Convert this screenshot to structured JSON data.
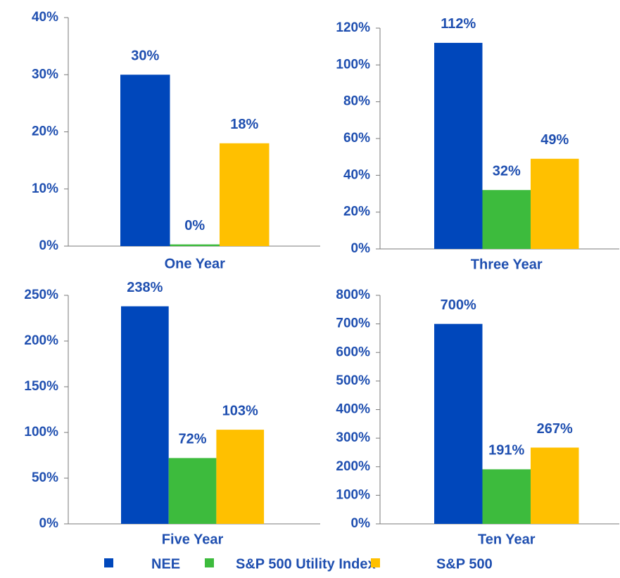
{
  "chart_data": [
    {
      "type": "bar",
      "categories": [
        "One Year"
      ],
      "series": [
        {
          "name": "NEE",
          "color": "#0047bb",
          "values": [
            30
          ],
          "value_labels": [
            "30%"
          ]
        },
        {
          "name": "S&P 500 Utility Index",
          "color": "#3dbb3d",
          "values": [
            0.3
          ],
          "value_labels": [
            "0%"
          ]
        },
        {
          "name": "S&P 500",
          "color": "#ffc000",
          "values": [
            18
          ],
          "value_labels": [
            "18%"
          ]
        }
      ],
      "ylim": [
        0,
        40
      ],
      "yticks": [
        {
          "value": 0,
          "label": "0%"
        },
        {
          "value": 10,
          "label": "10%"
        },
        {
          "value": 20,
          "label": "20%"
        },
        {
          "value": 30,
          "label": "30%"
        },
        {
          "value": 40,
          "label": "40%"
        }
      ]
    },
    {
      "type": "bar",
      "categories": [
        "Three Year"
      ],
      "series": [
        {
          "name": "NEE",
          "color": "#0047bb",
          "values": [
            112
          ],
          "value_labels": [
            "112%"
          ]
        },
        {
          "name": "S&P 500 Utility Index",
          "color": "#3dbb3d",
          "values": [
            32
          ],
          "value_labels": [
            "32%"
          ]
        },
        {
          "name": "S&P 500",
          "color": "#ffc000",
          "values": [
            49
          ],
          "value_labels": [
            "49%"
          ]
        }
      ],
      "ylim": [
        0,
        120
      ],
      "yticks": [
        {
          "value": 0,
          "label": "0%"
        },
        {
          "value": 20,
          "label": "20%"
        },
        {
          "value": 40,
          "label": "40%"
        },
        {
          "value": 60,
          "label": "60%"
        },
        {
          "value": 80,
          "label": "80%"
        },
        {
          "value": 100,
          "label": "100%"
        },
        {
          "value": 120,
          "label": "120%"
        }
      ]
    },
    {
      "type": "bar",
      "categories": [
        "Five Year"
      ],
      "series": [
        {
          "name": "NEE",
          "color": "#0047bb",
          "values": [
            238
          ],
          "value_labels": [
            "238%"
          ]
        },
        {
          "name": "S&P 500 Utility Index",
          "color": "#3dbb3d",
          "values": [
            72
          ],
          "value_labels": [
            "72%"
          ]
        },
        {
          "name": "S&P 500",
          "color": "#ffc000",
          "values": [
            103
          ],
          "value_labels": [
            "103%"
          ]
        }
      ],
      "ylim": [
        0,
        250
      ],
      "yticks": [
        {
          "value": 0,
          "label": "0%"
        },
        {
          "value": 50,
          "label": "50%"
        },
        {
          "value": 100,
          "label": "100%"
        },
        {
          "value": 150,
          "label": "150%"
        },
        {
          "value": 200,
          "label": "200%"
        },
        {
          "value": 250,
          "label": "250%"
        }
      ]
    },
    {
      "type": "bar",
      "categories": [
        "Ten Year"
      ],
      "series": [
        {
          "name": "NEE",
          "color": "#0047bb",
          "values": [
            700
          ],
          "value_labels": [
            "700%"
          ]
        },
        {
          "name": "S&P 500 Utility Index",
          "color": "#3dbb3d",
          "values": [
            191
          ],
          "value_labels": [
            "191%"
          ]
        },
        {
          "name": "S&P 500",
          "color": "#ffc000",
          "values": [
            267
          ],
          "value_labels": [
            "267%"
          ]
        }
      ],
      "ylim": [
        0,
        800
      ],
      "yticks": [
        {
          "value": 0,
          "label": "0%"
        },
        {
          "value": 100,
          "label": "100%"
        },
        {
          "value": 200,
          "label": "200%"
        },
        {
          "value": 300,
          "label": "300%"
        },
        {
          "value": 400,
          "label": "400%"
        },
        {
          "value": 500,
          "label": "500%"
        },
        {
          "value": 600,
          "label": "600%"
        },
        {
          "value": 700,
          "label": "700%"
        },
        {
          "value": 800,
          "label": "800%"
        }
      ]
    }
  ]
}
